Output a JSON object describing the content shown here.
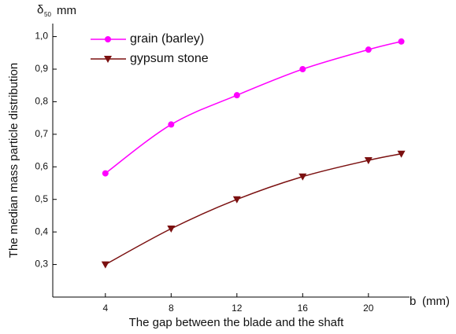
{
  "chart_data": {
    "type": "line",
    "y_label": "The median mass particle distribution",
    "x_label": "The gap between the blade and the shaft",
    "y_unit": {
      "symbol": "δ",
      "subscript": "50",
      "unit": "mm"
    },
    "x_unit": {
      "symbol": "b",
      "unit": "(mm)"
    },
    "x": [
      4,
      8,
      12,
      16,
      20,
      22
    ],
    "series": [
      {
        "name": "grain (barley)",
        "color": "#ff00ff",
        "marker": "circle",
        "values": [
          0.58,
          0.73,
          0.82,
          0.9,
          0.96,
          0.985
        ]
      },
      {
        "name": "gypsum stone",
        "color": "#7b1010",
        "marker": "triangle-down",
        "values": [
          0.3,
          0.41,
          0.5,
          0.57,
          0.62,
          0.64
        ]
      }
    ],
    "xlim": [
      0.8,
      22.5
    ],
    "xticks": [
      4,
      8,
      12,
      16,
      20
    ],
    "ylim": [
      0.2,
      1.04
    ],
    "yticks": [
      {
        "value": 0.3,
        "label": "0,3"
      },
      {
        "value": 0.4,
        "label": "0,4"
      },
      {
        "value": 0.5,
        "label": "0,5"
      },
      {
        "value": 0.6,
        "label": "0,6"
      },
      {
        "value": 0.7,
        "label": "0,7"
      },
      {
        "value": 0.8,
        "label": "0,8"
      },
      {
        "value": 0.9,
        "label": "0,9"
      },
      {
        "value": 1.0,
        "label": "1,0"
      }
    ],
    "legend": "top-left",
    "grid": false
  }
}
